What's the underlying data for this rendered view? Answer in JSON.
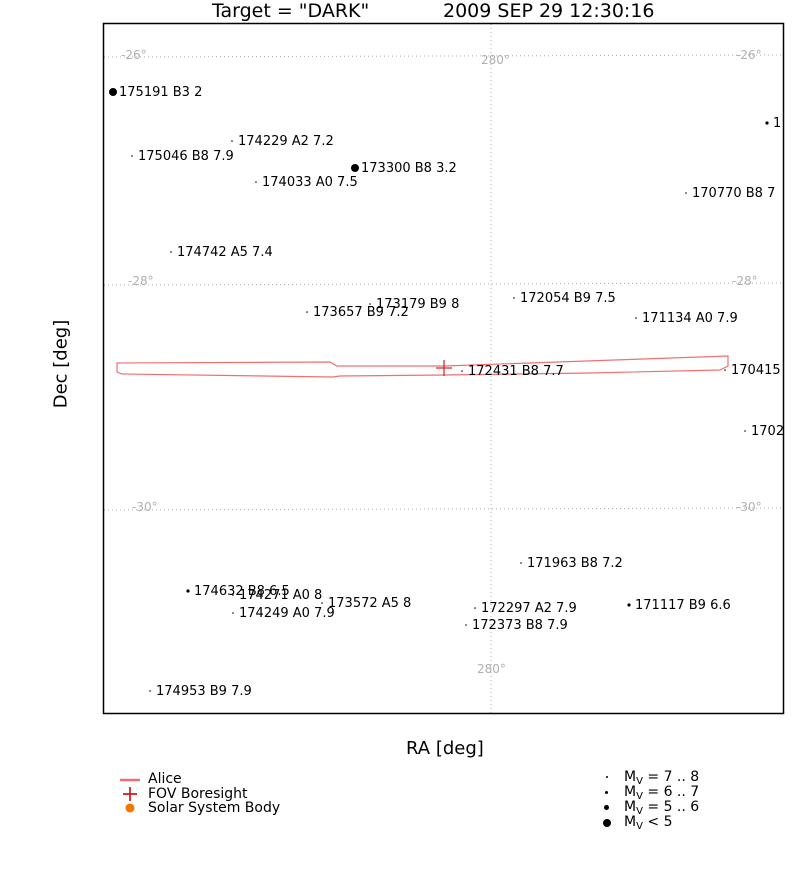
{
  "title": {
    "target": "Target = \"DARK\"",
    "time": "2009 SEP 29 12:30:16"
  },
  "chart_data": {
    "type": "scatter",
    "xlabel": "RA [deg]",
    "ylabel": "Dec [deg]",
    "grid": true,
    "grid_labels": [
      {
        "text": "-26°"
      },
      {
        "text": "-26°"
      },
      {
        "text": "280°"
      },
      {
        "text": "-28°"
      },
      {
        "text": "-28°"
      },
      {
        "text": "-30°"
      },
      {
        "text": "-30°"
      },
      {
        "text": "280°"
      }
    ],
    "stars": [
      {
        "label": "175191 B3 2",
        "mag_class": "lt5"
      },
      {
        "label": "174229 A2 7.2",
        "mag_class": "7-8"
      },
      {
        "label": "175046 B8 7.9",
        "mag_class": "7-8"
      },
      {
        "label": "173300 B8 3.2",
        "mag_class": "lt5"
      },
      {
        "label": "174033 A0 7.5",
        "mag_class": "7-8"
      },
      {
        "label": "1",
        "mag_class": "6-7"
      },
      {
        "label": "170770 B8 7",
        "mag_class": "7-8"
      },
      {
        "label": "174742 A5 7.4",
        "mag_class": "7-8"
      },
      {
        "label": "173179 B9 8",
        "mag_class": "7-8"
      },
      {
        "label": "172054 B9 7.5",
        "mag_class": "7-8"
      },
      {
        "label": "173657 B9 7.2",
        "mag_class": "7-8"
      },
      {
        "label": "171134 A0 7.9",
        "mag_class": "7-8"
      },
      {
        "label": "172431 B8 7.7",
        "mag_class": "7-8"
      },
      {
        "label": "170415",
        "mag_class": "7-8"
      },
      {
        "label": "1702",
        "mag_class": "7-8"
      },
      {
        "label": "171963 B8 7.2",
        "mag_class": "7-8"
      },
      {
        "label": "174632 B8 6.5",
        "mag_class": "6-7"
      },
      {
        "label": "174271 A0 8",
        "mag_class": "7-8"
      },
      {
        "label": "173572 A5 8",
        "mag_class": "7-8"
      },
      {
        "label": "174249 A0 7.9",
        "mag_class": "7-8"
      },
      {
        "label": "172297 A2 7.9",
        "mag_class": "7-8"
      },
      {
        "label": "171117 B9 6.6",
        "mag_class": "6-7"
      },
      {
        "label": "172373 B8 7.9",
        "mag_class": "7-8"
      },
      {
        "label": "174953 B9 7.9",
        "mag_class": "7-8"
      }
    ]
  },
  "legend_left": [
    {
      "icon": "line",
      "label": "Alice",
      "color": "#f07070"
    },
    {
      "icon": "cross",
      "label": "FOV Boresight",
      "color": "#d02020"
    },
    {
      "icon": "dot",
      "label": "Solar System Body",
      "color": "#f07800"
    }
  ],
  "legend_right": {
    "mv_sym": "M",
    "mv_sub": "V",
    "rows": [
      {
        "range": "= 7 .. 8"
      },
      {
        "range": "= 6 .. 7"
      },
      {
        "range": "= 5 .. 6"
      },
      {
        "range": "< 5"
      }
    ]
  },
  "colors": {
    "grid": "#b0b0b0",
    "frame": "#000000",
    "alice": "#f07070",
    "boresight": "#d02020",
    "solar_system_body": "#f07800"
  }
}
